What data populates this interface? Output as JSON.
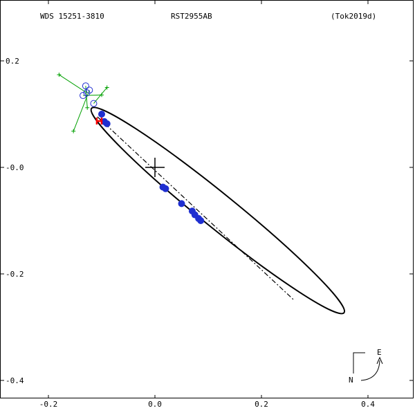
{
  "header": {
    "left": "WDS 15251-3810",
    "center": "RST2955AB",
    "right": "(Tok2019d)"
  },
  "compass": {
    "north_label": "N",
    "east_label": "E"
  },
  "colors": {
    "orbit": "#000000",
    "observations": "#1f2fd0",
    "open_observations": "#1f2fd0",
    "residual_lines": "#00a000",
    "periastron_marker": "#ff0000",
    "node_line": "#000000"
  },
  "chart_data": {
    "type": "scatter",
    "title": "",
    "xlabel": "",
    "ylabel": "",
    "xlim": [
      -0.29,
      0.49
    ],
    "ylim": [
      -0.46,
      0.2
    ],
    "x_ticks": [
      {
        "value": -0.2,
        "label": "-0.2"
      },
      {
        "value": 0.0,
        "label": "0.0"
      },
      {
        "value": 0.2,
        "label": "0.2"
      },
      {
        "value": 0.4,
        "label": "0.4"
      }
    ],
    "y_ticks": [
      {
        "value": 0.2,
        "label": "0.2"
      },
      {
        "value": 0.0,
        "label": "-0.0"
      },
      {
        "value": -0.2,
        "label": "-0.2"
      },
      {
        "value": -0.4,
        "label": "-0.4"
      }
    ],
    "primary_star": {
      "x": 0.0,
      "y": 0.0
    },
    "orbit": {
      "center": [
        0.118,
        -0.081
      ],
      "semi_major": 0.305,
      "semi_minor": 0.032,
      "angle_deg": -39.0
    },
    "line_of_nodes": {
      "from": [
        -0.108,
        0.095
      ],
      "to": [
        0.262,
        -0.25
      ]
    },
    "periastron": {
      "x": -0.104,
      "y": 0.087
    },
    "filled_points": [
      {
        "x": -0.1,
        "y": 0.1
      },
      {
        "x": -0.095,
        "y": 0.086
      },
      {
        "x": -0.09,
        "y": 0.082
      },
      {
        "x": 0.015,
        "y": -0.037
      },
      {
        "x": 0.02,
        "y": -0.04
      },
      {
        "x": 0.05,
        "y": -0.068
      },
      {
        "x": 0.07,
        "y": -0.082
      },
      {
        "x": 0.075,
        "y": -0.089
      },
      {
        "x": 0.082,
        "y": -0.096
      },
      {
        "x": 0.086,
        "y": -0.1
      }
    ],
    "open_points": [
      {
        "x": -0.135,
        "y": 0.135,
        "ox": -0.1,
        "oy": 0.136
      },
      {
        "x": -0.128,
        "y": 0.14,
        "ox": -0.18,
        "oy": 0.174
      },
      {
        "x": -0.123,
        "y": 0.145,
        "ox": -0.153,
        "oy": 0.068
      },
      {
        "x": -0.115,
        "y": 0.12,
        "ox": -0.09,
        "oy": 0.15
      },
      {
        "x": -0.13,
        "y": 0.153,
        "ox": -0.127,
        "oy": 0.112
      }
    ]
  }
}
